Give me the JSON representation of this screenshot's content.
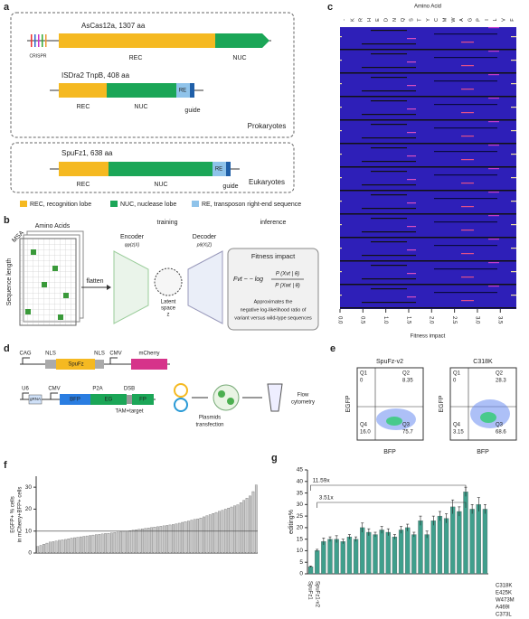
{
  "panels": {
    "a": {
      "label": "a",
      "ascas12a": {
        "title": "AsCas12a, 1307 aa",
        "crispr": "CRISPR",
        "rec": "REC",
        "nuc": "NUC"
      },
      "tnpb": {
        "title": "ISDra2 TnpB, 408 aa",
        "rec": "REC",
        "nuc": "NUC",
        "re": "RE",
        "guide": "guide"
      },
      "prokaryotes": "Prokaryotes",
      "spufz1": {
        "title": "SpuFz1, 638 aa",
        "rec": "REC",
        "nuc": "NUC",
        "re": "RE",
        "guide": "guide"
      },
      "eukaryotes": "Eukaryotes",
      "legend": [
        {
          "text": "REC, recognition lobe",
          "color": "#f5b921"
        },
        {
          "text": "NUC, nuclease lobe",
          "color": "#1ba657"
        },
        {
          "text": "RE, transposon right-end sequence",
          "color": "#8fc3ea"
        }
      ]
    },
    "b": {
      "label": "b",
      "amino_acids": "Amino Acids",
      "msa": "MSA",
      "sequence_length": "Sequence length",
      "flatten": "flatten",
      "training": "training",
      "inference": "inference",
      "encoder": "Encoder",
      "encoder_fn": "qφ(z|X)",
      "decoder": "Decoder",
      "decoder_fn": "pθ(X|Z)",
      "latent": [
        "Latent",
        "space",
        "z"
      ],
      "fitness_title": "Fitness impact",
      "formula": {
        "lhs": "Fvt ~ − log",
        "numerator": "P (Xvt | θ)",
        "denominator": "P (Xwt | θ)"
      },
      "fitness_desc": [
        "Approximates the",
        "negative log-likelihood ratio of",
        "variant versus wild-type sequences"
      ]
    },
    "c": {
      "label": "c",
      "title": "Amino Acid",
      "residues": [
        "-",
        "K",
        "R",
        "H",
        "E",
        "D",
        "N",
        "Q",
        "S",
        "T",
        "Y",
        "C",
        "M",
        "W",
        "A",
        "G",
        "P",
        "I",
        "L",
        "V",
        "F"
      ],
      "xlabel": "Fitness impact",
      "xlim": [
        0,
        3.85
      ],
      "xticks": [
        {
          "value": 0,
          "label": "0.0"
        },
        {
          "value": 0.5,
          "label": "0.5"
        },
        {
          "value": 1,
          "label": "1.0"
        },
        {
          "value": 1.5,
          "label": "1.5"
        },
        {
          "value": 2,
          "label": "2.0"
        },
        {
          "value": 2.5,
          "label": "2.5"
        },
        {
          "value": 3,
          "label": "3.0"
        },
        {
          "value": 3.5,
          "label": "3.5"
        }
      ]
    },
    "d": {
      "label": "d",
      "cag": "CAG",
      "nls": "NLS",
      "spufz": "SpuFz",
      "cmv": "CMV",
      "mcherry": "mCherry",
      "u6": "U6",
      "grna": "gRNA",
      "bfp": "BFP",
      "p2a": "P2A",
      "eg": "EG",
      "fp": "FP",
      "dsb": "DSB",
      "tam_target": "TAM+target",
      "plasmids_transfection": [
        "Plasmids",
        "transfection"
      ],
      "flow_cytometry": [
        "Flow",
        "cytometry"
      ]
    },
    "e": {
      "label": "e",
      "xlabel": "BFP",
      "ylabel": "EGFP",
      "plots": [
        {
          "title": "SpuFz-v2",
          "quadrants": [
            {
              "name": "Q1",
              "value": "0"
            },
            {
              "name": "Q2",
              "value": "8.35"
            },
            {
              "name": "Q4",
              "value": "16.0"
            },
            {
              "name": "Q3",
              "value": "75.7"
            }
          ]
        },
        {
          "title": "C318K",
          "quadrants": [
            {
              "name": "Q1",
              "value": "0"
            },
            {
              "name": "Q2",
              "value": "28.3"
            },
            {
              "name": "Q4",
              "value": "3.15"
            },
            {
              "name": "Q3",
              "value": "68.6"
            }
          ]
        }
      ]
    }
  },
  "chart_data": [
    {
      "type": "bar",
      "label": "f",
      "ylabel": [
        "EGFP+ % cells",
        "in mCherry+BFP+ cells"
      ],
      "ylim": [
        0,
        35
      ],
      "yticks": [
        0,
        10,
        20,
        30
      ],
      "reference_line": 10,
      "color": "#c8c8c8",
      "values": [
        3,
        3.5,
        4,
        4.5,
        5,
        5.2,
        5.5,
        5.8,
        6,
        6.2,
        6.5,
        6.8,
        7,
        7.2,
        7.4,
        7.6,
        7.8,
        8,
        8.2,
        8.4,
        8.5,
        8.7,
        8.9,
        9,
        9.2,
        9.4,
        9.5,
        9.7,
        9.9,
        10,
        10.2,
        10.4,
        10.6,
        10.8,
        11,
        11.2,
        11.4,
        11.6,
        11.8,
        12,
        12.2,
        12.4,
        12.6,
        12.8,
        13,
        13.3,
        13.6,
        14,
        14.3,
        14.6,
        15,
        15.3,
        15.6,
        16,
        16.5,
        17,
        17.5,
        18,
        18.5,
        19,
        19.5,
        20,
        20.5,
        21,
        21.5,
        22,
        23,
        24,
        25,
        26,
        28,
        31
      ]
    },
    {
      "type": "bar",
      "label": "g",
      "ylabel": "editing%",
      "ylim": [
        0,
        45
      ],
      "yticks": [
        0,
        5,
        10,
        15,
        20,
        25,
        30,
        35,
        40,
        45
      ],
      "color": "#3f9f8c",
      "values": [
        3.1,
        10.1,
        14,
        15,
        15,
        14,
        16,
        15,
        20,
        18,
        17,
        19,
        18,
        16,
        19,
        20,
        17,
        23,
        17,
        23,
        25,
        24,
        29,
        27,
        35.5,
        28,
        30,
        28
      ],
      "errors": [
        0.3,
        0.5,
        1.5,
        1,
        1.5,
        1,
        1,
        1,
        2,
        1.5,
        1,
        1.5,
        1.5,
        1,
        1.5,
        1.5,
        1,
        2,
        1.5,
        2,
        2,
        2,
        3,
        2,
        2,
        2,
        3,
        2
      ],
      "annotations": [
        "11.59x",
        "3.51x"
      ],
      "row_labels": [
        "SpuFz1",
        "SpuFz1-v2",
        "C318K",
        "E425K",
        "W473M",
        "A469I",
        "C373L"
      ]
    }
  ]
}
